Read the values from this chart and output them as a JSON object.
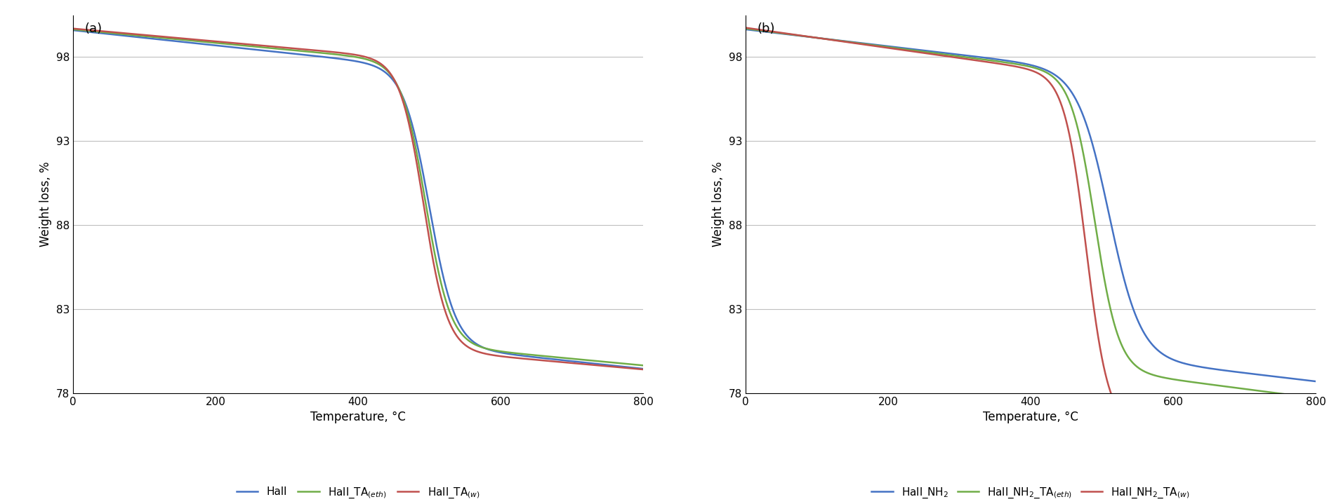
{
  "title_a": "(a)",
  "title_b": "(b)",
  "xlabel": "Temperature, °C",
  "ylabel": "Weight loss, %",
  "xlim": [
    0,
    800
  ],
  "ylim": [
    78,
    100.5
  ],
  "yticks": [
    78,
    83,
    88,
    93,
    98
  ],
  "xticks": [
    0,
    200,
    400,
    600,
    800
  ],
  "colors": {
    "blue": "#4472C4",
    "green": "#70AD47",
    "red": "#C0504D"
  },
  "background": "#FFFFFF",
  "grid_color": "#BFBFBF"
}
